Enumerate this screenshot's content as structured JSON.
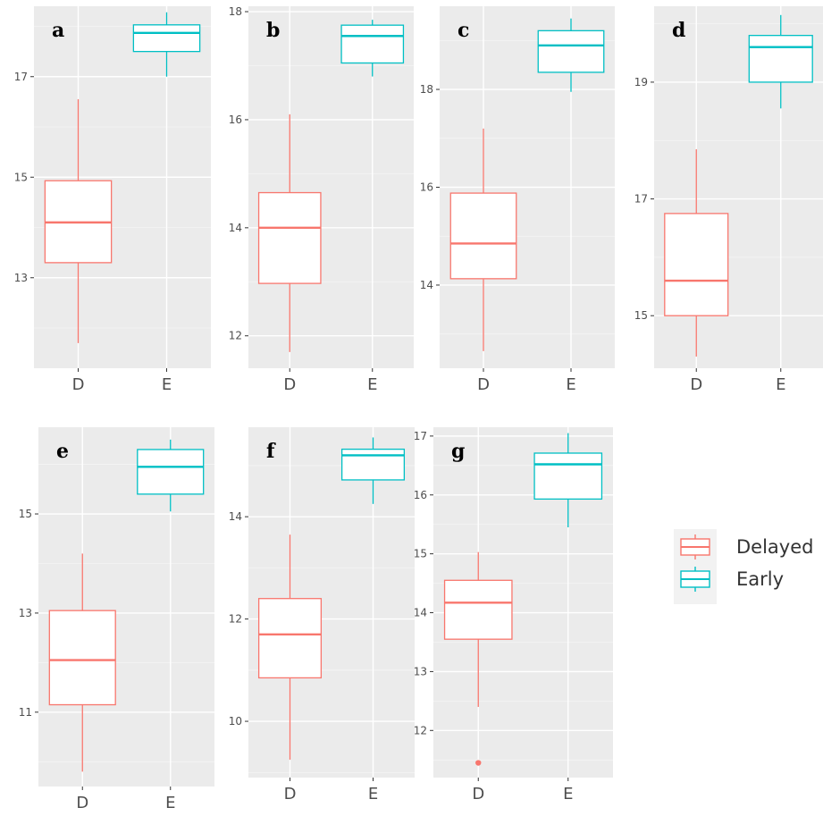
{
  "colors": {
    "delayed": "#F8766D",
    "early": "#00BFC4",
    "panel_background": "#EBEBEB",
    "grid_major": "#FFFFFF",
    "axis_text": "#4D4D4D"
  },
  "legend": {
    "items": [
      {
        "label": "Delayed",
        "color": "#F8766D"
      },
      {
        "label": "Early",
        "color": "#00BFC4"
      }
    ]
  },
  "chart_data": [
    {
      "type": "boxplot",
      "panel_label": "a",
      "categories": [
        "D",
        "E"
      ],
      "ylim": [
        11.2,
        18.4
      ],
      "yticks": [
        13,
        15,
        17
      ],
      "boxes": [
        {
          "category": "D",
          "group": "Delayed",
          "whisker_low": 11.7,
          "q1": 13.3,
          "median": 14.1,
          "q3": 14.93,
          "whisker_high": 16.55,
          "outliers": []
        },
        {
          "category": "E",
          "group": "Early",
          "whisker_low": 17.0,
          "q1": 17.5,
          "median": 17.87,
          "q3": 18.03,
          "whisker_high": 18.28,
          "outliers": []
        }
      ]
    },
    {
      "type": "boxplot",
      "panel_label": "b",
      "categories": [
        "D",
        "E"
      ],
      "ylim": [
        11.4,
        18.1
      ],
      "yticks": [
        12,
        14,
        16,
        18
      ],
      "boxes": [
        {
          "category": "D",
          "group": "Delayed",
          "whisker_low": 11.7,
          "q1": 12.97,
          "median": 14.0,
          "q3": 14.65,
          "whisker_high": 16.1,
          "outliers": []
        },
        {
          "category": "E",
          "group": "Early",
          "whisker_low": 16.8,
          "q1": 17.05,
          "median": 17.55,
          "q3": 17.75,
          "whisker_high": 17.85,
          "outliers": []
        }
      ]
    },
    {
      "type": "boxplot",
      "panel_label": "c",
      "categories": [
        "D",
        "E"
      ],
      "ylim": [
        12.3,
        19.7
      ],
      "yticks": [
        14,
        16,
        18
      ],
      "boxes": [
        {
          "category": "D",
          "group": "Delayed",
          "whisker_low": 12.65,
          "q1": 14.13,
          "median": 14.85,
          "q3": 15.88,
          "whisker_high": 17.2,
          "outliers": []
        },
        {
          "category": "E",
          "group": "Early",
          "whisker_low": 17.95,
          "q1": 18.35,
          "median": 18.9,
          "q3": 19.2,
          "whisker_high": 19.45,
          "outliers": []
        }
      ]
    },
    {
      "type": "boxplot",
      "panel_label": "d",
      "categories": [
        "D",
        "E"
      ],
      "ylim": [
        14.1,
        20.3
      ],
      "yticks": [
        15,
        17,
        19
      ],
      "boxes": [
        {
          "category": "D",
          "group": "Delayed",
          "whisker_low": 14.3,
          "q1": 15.0,
          "median": 15.6,
          "q3": 16.75,
          "whisker_high": 17.85,
          "outliers": []
        },
        {
          "category": "E",
          "group": "Early",
          "whisker_low": 18.55,
          "q1": 19.0,
          "median": 19.6,
          "q3": 19.8,
          "whisker_high": 20.15,
          "outliers": []
        }
      ]
    },
    {
      "type": "boxplot",
      "panel_label": "e",
      "categories": [
        "D",
        "E"
      ],
      "ylim": [
        9.5,
        16.75
      ],
      "yticks": [
        11,
        13,
        15
      ],
      "boxes": [
        {
          "category": "D",
          "group": "Delayed",
          "whisker_low": 9.8,
          "q1": 11.15,
          "median": 12.05,
          "q3": 13.05,
          "whisker_high": 14.2,
          "outliers": []
        },
        {
          "category": "E",
          "group": "Early",
          "whisker_low": 15.05,
          "q1": 15.4,
          "median": 15.95,
          "q3": 16.3,
          "whisker_high": 16.5,
          "outliers": []
        }
      ]
    },
    {
      "type": "boxplot",
      "panel_label": "f",
      "categories": [
        "D",
        "E"
      ],
      "ylim": [
        8.9,
        15.75
      ],
      "yticks": [
        10,
        12,
        14
      ],
      "boxes": [
        {
          "category": "D",
          "group": "Delayed",
          "whisker_low": 9.25,
          "q1": 10.85,
          "median": 11.7,
          "q3": 12.4,
          "whisker_high": 13.65,
          "outliers": []
        },
        {
          "category": "E",
          "group": "Early",
          "whisker_low": 14.25,
          "q1": 14.72,
          "median": 15.2,
          "q3": 15.32,
          "whisker_high": 15.55,
          "outliers": []
        }
      ]
    },
    {
      "type": "boxplot",
      "panel_label": "g",
      "categories": [
        "D",
        "E"
      ],
      "ylim": [
        11.2,
        17.15
      ],
      "yticks": [
        12,
        13,
        14,
        15,
        16,
        17
      ],
      "boxes": [
        {
          "category": "D",
          "group": "Delayed",
          "whisker_low": 12.4,
          "q1": 13.55,
          "median": 14.17,
          "q3": 14.55,
          "whisker_high": 15.03,
          "outliers": [
            11.45
          ]
        },
        {
          "category": "E",
          "group": "Early",
          "whisker_low": 15.45,
          "q1": 15.93,
          "median": 16.52,
          "q3": 16.71,
          "whisker_high": 17.05,
          "outliers": []
        }
      ]
    }
  ]
}
